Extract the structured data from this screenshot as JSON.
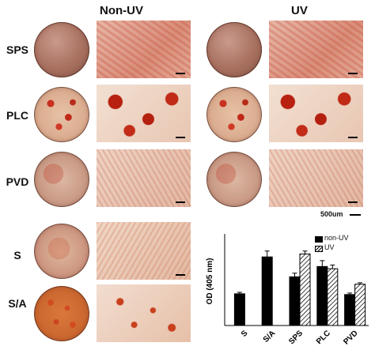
{
  "headers": {
    "left": "Non-UV",
    "right": "UV"
  },
  "rows": [
    "SPS",
    "PLC",
    "PVD",
    "S",
    "S/A"
  ],
  "scale_bar_label": "500um",
  "colors": {
    "bar_nonuv": "#000000",
    "bar_uv": "#ffffff"
  },
  "chart_data": {
    "type": "bar",
    "categories": [
      "S",
      "S/A",
      "SPS",
      "PLC",
      "PVD"
    ],
    "ylabel": "OD (405 nm)",
    "ylim": [
      0,
      1.2
    ],
    "series": [
      {
        "name": "non-UV",
        "values": [
          0.43,
          0.93,
          0.66,
          0.8,
          0.42
        ]
      },
      {
        "name": "UV",
        "values": [
          null,
          null,
          0.97,
          0.77,
          0.56
        ]
      }
    ],
    "errors": [
      [
        0.02,
        0.08,
        0.05,
        0.08,
        0.02
      ],
      [
        null,
        null,
        0.04,
        0.05,
        0.02
      ]
    ],
    "legend_position": "top-right",
    "grid": false
  }
}
